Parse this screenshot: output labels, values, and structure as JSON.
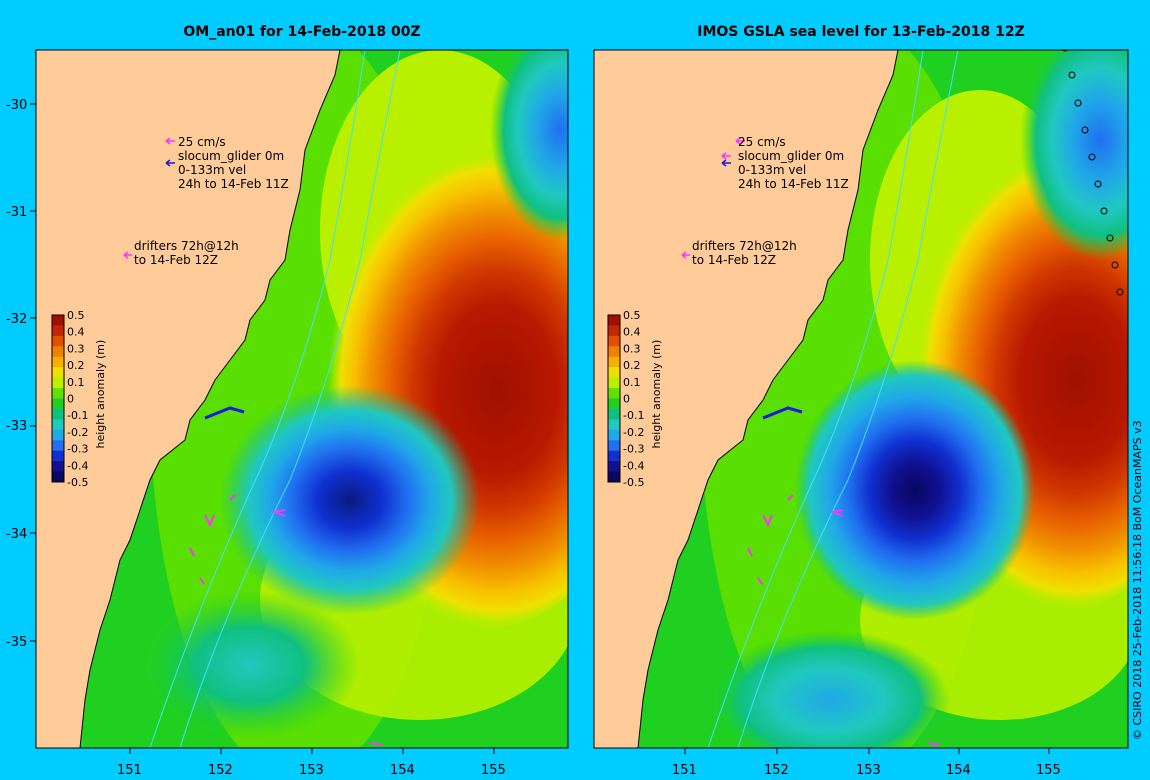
{
  "left_panel": {
    "title": "OM_an01 for 14-Feb-2018 00Z",
    "legend_vel": [
      "25 cm/s",
      "slocum_glider 0m",
      "0-133m vel",
      "24h to 14-Feb 11Z"
    ],
    "legend_drifters": [
      "drifters 72h@12h",
      "to 14-Feb 12Z"
    ]
  },
  "right_panel": {
    "title": "IMOS GSLA sea level  for 13-Feb-2018 12Z",
    "legend_vel": [
      "25 cm/s",
      "slocum_glider 0m",
      "0-133m vel",
      "24h to 14-Feb 11Z"
    ],
    "legend_drifters": [
      "drifters 72h@12h",
      "to 14-Feb 12Z"
    ]
  },
  "axes": {
    "lat_ticks": [
      "-30",
      "-31",
      "-32",
      "-33",
      "-34",
      "-35"
    ],
    "lon_ticks": [
      "151",
      "152",
      "153",
      "154",
      "155"
    ]
  },
  "colorbar": {
    "label": "height anomaly (m)",
    "ticks": [
      "0.5",
      "0.4",
      "0.3",
      "0.2",
      "0.1",
      "0",
      "-0.1",
      "-0.2",
      "-0.3",
      "-0.4",
      "-0.5"
    ],
    "colors": [
      "#a01000",
      "#c02800",
      "#e05000",
      "#f08000",
      "#f8b000",
      "#f0e000",
      "#b8f000",
      "#60e000",
      "#20d020",
      "#10c080",
      "#20c8c0",
      "#20a8e8",
      "#2070f0",
      "#1030d0",
      "#101090",
      "#080860"
    ]
  },
  "credit": "© CSIRO 2018   25-Feb-2018 11:56:18 BoM OceanMAPS v3",
  "colors": {
    "background": "#00ccff",
    "land": "#ffcc99",
    "shelf": "#bfa68a"
  }
}
